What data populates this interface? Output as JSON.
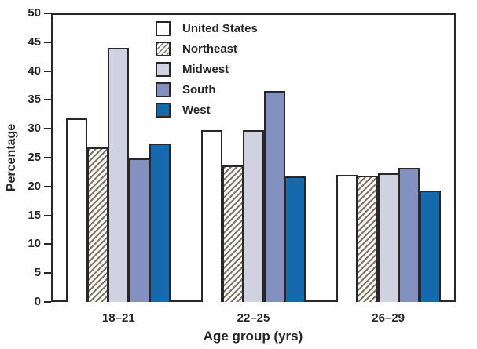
{
  "figure": {
    "background": "#ffffff",
    "frame_color": "#2b2627",
    "text_color": "#27242a"
  },
  "chart_data": {
    "type": "bar",
    "title": "",
    "xlabel": "Age group (yrs)",
    "ylabel": "Percentage",
    "ylim": [
      0,
      50
    ],
    "ytick_step": 5,
    "ytick_labels": [
      "0",
      "5",
      "10",
      "15",
      "20",
      "25",
      "30",
      "35",
      "40",
      "45",
      "50"
    ],
    "grid": false,
    "legend_position": "top-left-inside",
    "categories": [
      "18–21",
      "22–25",
      "26–29"
    ],
    "series": [
      {
        "name": "United States",
        "fill": "#ffffff",
        "pattern": "solid",
        "values": [
          31.8,
          29.7,
          22.0
        ]
      },
      {
        "name": "Northeast",
        "fill": "#ffffff",
        "pattern": "diagonal-hatch",
        "hatch_color": "#7e7669",
        "values": [
          26.7,
          23.6,
          21.9
        ]
      },
      {
        "name": "Midwest",
        "fill": "#cfd3e1",
        "pattern": "solid",
        "values": [
          44.0,
          29.8,
          22.3
        ]
      },
      {
        "name": "South",
        "fill": "#8391c0",
        "pattern": "solid",
        "values": [
          24.8,
          36.5,
          23.3
        ]
      },
      {
        "name": "West",
        "fill": "#1769ad",
        "pattern": "solid",
        "values": [
          27.5,
          21.8,
          19.3
        ]
      }
    ]
  }
}
